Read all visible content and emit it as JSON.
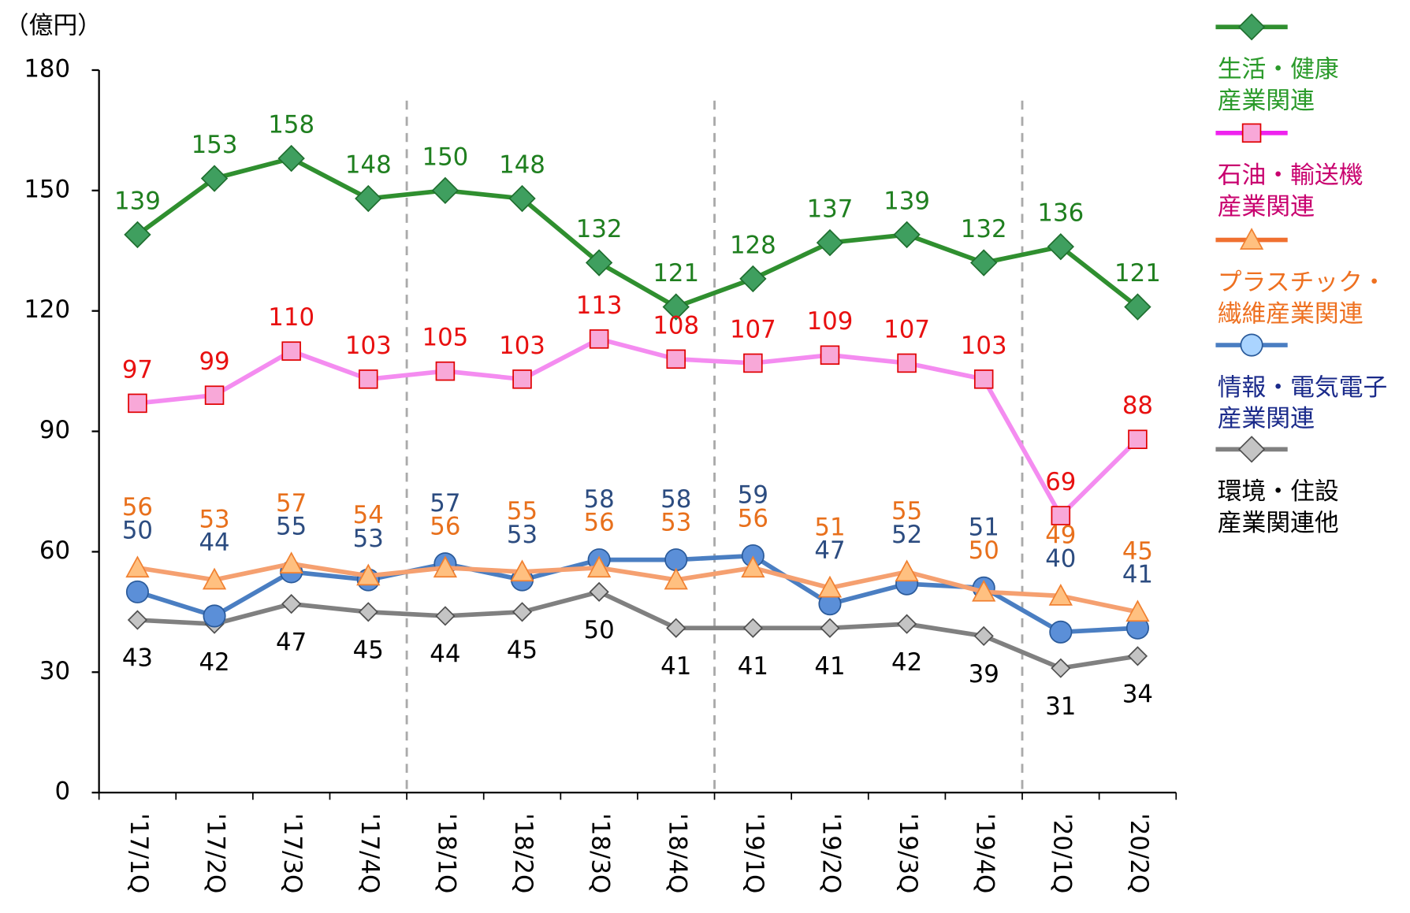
{
  "chart_data": {
    "type": "line",
    "unit_label": "（億円）",
    "categories": [
      "'17/1Q",
      "'17/2Q",
      "'17/3Q",
      "'17/4Q",
      "'18/1Q",
      "'18/2Q",
      "'18/3Q",
      "'18/4Q",
      "'19/1Q",
      "'19/2Q",
      "'19/3Q",
      "'19/4Q",
      "'20/1Q",
      "'20/2Q"
    ],
    "ylim": [
      0,
      180
    ],
    "yticks": [
      0,
      30,
      60,
      90,
      120,
      150,
      180
    ],
    "series": [
      {
        "name": "生活・健康\n産業関連",
        "color": "#2f8f2f",
        "marker": "diamond",
        "marker_color": "#3f9f5f",
        "label_color": "#1f7f1f",
        "legend_color": "#2a9a2a",
        "values": [
          139,
          153,
          158,
          148,
          150,
          148,
          132,
          121,
          128,
          137,
          139,
          132,
          136,
          121
        ]
      },
      {
        "name": "石油・輸送機\n産業関連",
        "color": "#f48cf0",
        "marker": "square",
        "marker_color": "#f8a8d8",
        "label_color": "#e81010",
        "legend_color": "#c8006e",
        "legend_line": "#ee22ee",
        "values": [
          97,
          99,
          110,
          103,
          105,
          103,
          113,
          108,
          107,
          109,
          107,
          103,
          69,
          88
        ]
      },
      {
        "name": "プラスチック・\n繊維産業関連",
        "color": "#f5a070",
        "marker": "triangle",
        "marker_color": "#ffc080",
        "label_color": "#e8701c",
        "legend_color": "#ee7020",
        "legend_line": "#f07030",
        "values": [
          56,
          53,
          57,
          54,
          56,
          55,
          56,
          53,
          56,
          51,
          55,
          50,
          49,
          45
        ]
      },
      {
        "name": "情報・電気電子\n産業関連",
        "color": "#4a7ec2",
        "marker": "circle",
        "marker_color": "#5b8fd8",
        "label_color": "#2c4c80",
        "legend_color": "#1a2a8a",
        "legend_marker": "#aad4ff",
        "values": [
          50,
          44,
          55,
          53,
          57,
          53,
          58,
          58,
          59,
          47,
          52,
          51,
          40,
          41
        ]
      },
      {
        "name": "環境・住設\n産業関連他",
        "color": "#808080",
        "marker": "diamond-small",
        "marker_color": "#c4c4c4",
        "label_color": "#000000",
        "legend_color": "#000000",
        "values": [
          43,
          42,
          47,
          45,
          44,
          45,
          50,
          41,
          41,
          41,
          42,
          39,
          31,
          34
        ]
      }
    ]
  }
}
